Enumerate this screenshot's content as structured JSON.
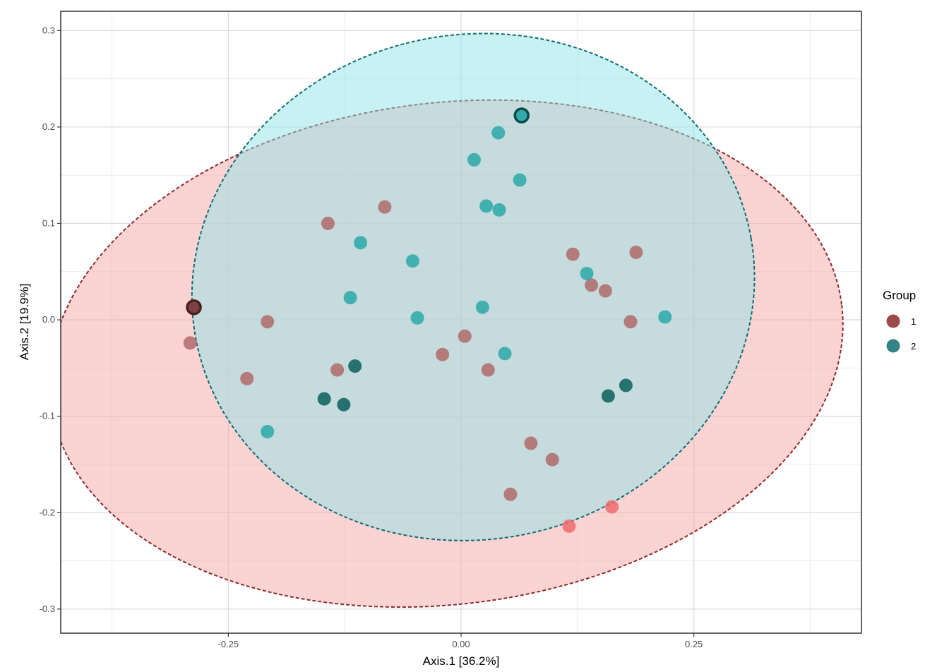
{
  "chart_data": {
    "type": "scatter",
    "title": "",
    "xlabel": "Axis.1   [36.2%]",
    "ylabel": "Axis.2   [19.9%]",
    "xlim": [
      -0.43,
      0.43
    ],
    "ylim": [
      -0.325,
      0.32
    ],
    "xticks": [
      -0.25,
      0.0,
      0.25
    ],
    "xtick_labels": [
      "-0.25",
      "0.00",
      "0.25"
    ],
    "yticks": [
      -0.3,
      -0.2,
      -0.1,
      0.0,
      0.1,
      0.2,
      0.3
    ],
    "ytick_labels": [
      "-0.3",
      "-0.2",
      "-0.1",
      "0.0",
      "0.1",
      "0.2",
      "0.3"
    ],
    "grid": true,
    "legend": {
      "title": "Group",
      "position": "right"
    },
    "colors": {
      "group1_point": "#a05050",
      "group1_ellipse_fill": "#f8a8a8",
      "group1_ellipse_stroke": "#8b2a2a",
      "group2_point": "#2aa8a8",
      "group2_ellipse_fill": "#8fe3e8",
      "group2_ellipse_stroke": "#0e6e72"
    },
    "series": [
      {
        "name": "1",
        "legend_color": "#8b2a2a",
        "points": [
          {
            "x": -0.287,
            "y": 0.013,
            "c": "#7a3a3a",
            "outline": true
          },
          {
            "x": -0.291,
            "y": -0.024,
            "c": "#b06a6a"
          },
          {
            "x": -0.208,
            "y": -0.002,
            "c": "#b06a6a"
          },
          {
            "x": -0.23,
            "y": -0.061,
            "c": "#b06a6a"
          },
          {
            "x": -0.143,
            "y": 0.1,
            "c": "#b06a6a"
          },
          {
            "x": -0.082,
            "y": 0.117,
            "c": "#b06a6a"
          },
          {
            "x": -0.133,
            "y": -0.052,
            "c": "#b06a6a"
          },
          {
            "x": -0.02,
            "y": -0.036,
            "c": "#b06a6a"
          },
          {
            "x": 0.004,
            "y": -0.017,
            "c": "#b06a6a"
          },
          {
            "x": 0.029,
            "y": -0.052,
            "c": "#b06a6a"
          },
          {
            "x": 0.12,
            "y": 0.068,
            "c": "#b06a6a"
          },
          {
            "x": 0.188,
            "y": 0.07,
            "c": "#b06a6a"
          },
          {
            "x": 0.14,
            "y": 0.036,
            "c": "#b06a6a"
          },
          {
            "x": 0.155,
            "y": 0.03,
            "c": "#b06a6a"
          },
          {
            "x": 0.182,
            "y": -0.002,
            "c": "#b06a6a"
          },
          {
            "x": 0.075,
            "y": -0.128,
            "c": "#b06a6a"
          },
          {
            "x": 0.098,
            "y": -0.145,
            "c": "#b06a6a"
          },
          {
            "x": 0.053,
            "y": -0.181,
            "c": "#b06a6a"
          },
          {
            "x": 0.162,
            "y": -0.194,
            "c": "#ee6a6a"
          },
          {
            "x": 0.116,
            "y": -0.214,
            "c": "#ee6a6a"
          }
        ]
      },
      {
        "name": "2",
        "legend_color": "#0e6e72",
        "points": [
          {
            "x": 0.065,
            "y": 0.212,
            "c": "#2aa8a8",
            "outline": true
          },
          {
            "x": 0.04,
            "y": 0.194,
            "c": "#2aa8a8"
          },
          {
            "x": 0.014,
            "y": 0.166,
            "c": "#2aa8a8"
          },
          {
            "x": 0.063,
            "y": 0.145,
            "c": "#2aa8a8"
          },
          {
            "x": 0.027,
            "y": 0.118,
            "c": "#2aa8a8"
          },
          {
            "x": 0.041,
            "y": 0.114,
            "c": "#2aa8a8"
          },
          {
            "x": -0.108,
            "y": 0.08,
            "c": "#2aa8a8"
          },
          {
            "x": -0.052,
            "y": 0.061,
            "c": "#2aa8a8"
          },
          {
            "x": 0.135,
            "y": 0.048,
            "c": "#2aa8a8"
          },
          {
            "x": -0.119,
            "y": 0.023,
            "c": "#2aa8a8"
          },
          {
            "x": 0.023,
            "y": 0.013,
            "c": "#2aa8a8"
          },
          {
            "x": -0.047,
            "y": 0.002,
            "c": "#2aa8a8"
          },
          {
            "x": 0.219,
            "y": 0.003,
            "c": "#2aa8a8"
          },
          {
            "x": 0.047,
            "y": -0.035,
            "c": "#2aa8a8"
          },
          {
            "x": -0.208,
            "y": -0.116,
            "c": "#2aa8a8"
          },
          {
            "x": -0.114,
            "y": -0.048,
            "c": "#0b5e5a"
          },
          {
            "x": -0.147,
            "y": -0.082,
            "c": "#0b5e5a"
          },
          {
            "x": -0.126,
            "y": -0.088,
            "c": "#0b5e5a"
          },
          {
            "x": 0.158,
            "y": -0.079,
            "c": "#0b5e5a"
          },
          {
            "x": 0.177,
            "y": -0.068,
            "c": "#0b5e5a"
          }
        ]
      }
    ],
    "ellipses": [
      {
        "group": "1",
        "cx": -0.016,
        "cy": -0.035,
        "rx": 0.428,
        "ry": 0.26,
        "angle_deg": 7
      },
      {
        "group": "2",
        "cx": 0.013,
        "cy": 0.034,
        "rx": 0.303,
        "ry": 0.262,
        "angle_deg": 10
      }
    ]
  }
}
